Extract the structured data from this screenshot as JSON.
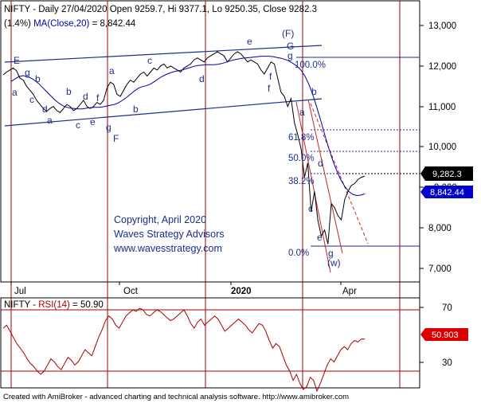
{
  "header": {
    "line1": "NIFTY - Daily 27/04/2020 Open 9259.7, Hi 9377.1, Lo 9250.35, Close 9282.3",
    "line2_prefix": "(1.4%) ",
    "line2_ma": "MA(Close,20)",
    "line2_value": " = 8,842.44"
  },
  "price_axis": {
    "ticks": [
      "13,000",
      "12,000",
      "11,000",
      "10,000",
      "9,000",
      "8,000",
      "7,000"
    ],
    "close_badge": "9,282.3",
    "ma_badge": "8,842.44"
  },
  "x_axis": {
    "ticks": [
      "Jul",
      "Oct",
      "2020",
      "Apr"
    ]
  },
  "copyright": {
    "line1": "Copyright, April 2020",
    "line2": "Waves Strategy Advisors",
    "line3": "www.wavesstrategy.com"
  },
  "fib_labels": [
    "100.0%",
    "61.8%",
    "50.0%",
    "38.2%",
    "0.0%"
  ],
  "wave_labels": {
    "E": "E",
    "a": "a",
    "b": "b",
    "c": "c",
    "d": "d",
    "e": "e",
    "f": "f",
    "g": "g",
    "F_top": "(F)",
    "G": "G",
    "F": "F",
    "W": "(w)"
  },
  "rsi": {
    "label_prefix": "NIFTY - ",
    "label_rsi": "RSI(14)",
    "label_value": " = 50.90",
    "ticks": [
      "70",
      "30"
    ],
    "badge": "50.903"
  },
  "footer": "Created with AmiBroker - advanced charting and technical analysis software. http://www.amibroker.com",
  "colors": {
    "price": "#000000",
    "ma": "#0000aa",
    "rsi": "#aa0000",
    "channel": "#1c2e8c",
    "vertical": "#990000",
    "badge_close": "#000000",
    "badge_ma": "#0000cc",
    "badge_rsi": "#dd0000"
  },
  "chart_data": [
    {
      "type": "line",
      "title": "NIFTY - Daily 27/04/2020 Open 9259.7, Hi 9377.1, Lo 9250.35, Close 9282.3",
      "ylim": [
        6500,
        13300
      ],
      "x_tick_labels": [
        "Jul",
        "Oct",
        "2020",
        "Apr"
      ],
      "series": [
        {
          "name": "NIFTY",
          "values": [
            11780,
            11850,
            11900,
            11950,
            11880,
            11700,
            11650,
            11500,
            11400,
            11300,
            11150,
            11050,
            10950,
            10880,
            10950,
            11000,
            10900,
            10850,
            10950,
            11050,
            11000,
            10900,
            10950,
            11050,
            11150,
            11000,
            10950,
            11000,
            11100,
            11050,
            11150,
            11450,
            11600,
            11550,
            11300,
            11250,
            11400,
            11550,
            11650,
            11600,
            11700,
            11800,
            11850,
            11750,
            11850,
            11950,
            11900,
            12000,
            12050,
            11950,
            12000,
            11950,
            11900,
            11850,
            11950,
            12000,
            12050,
            12150,
            12200,
            12150,
            12100,
            12200,
            12250,
            12300,
            12350,
            12300,
            12250,
            12100,
            12200,
            12300,
            12350,
            12300,
            12200,
            12100,
            12150,
            12100,
            12050,
            11900,
            11800,
            11950,
            12100,
            12050,
            11700,
            11350,
            11250,
            11000,
            11200,
            10600,
            10300,
            9950,
            9250,
            9600,
            8400,
            8900,
            8200,
            7800,
            7950,
            7600,
            8600,
            8500,
            8300,
            8200,
            8700,
            8900,
            9050,
            9100,
            9200,
            9250,
            9280
          ]
        },
        {
          "name": "MA(Close,20)",
          "values": [
            11620,
            11680,
            11740,
            11760,
            11740,
            11700,
            11640,
            11560,
            11460,
            11360,
            11260,
            11160,
            11080,
            11020,
            10980,
            10960,
            10950,
            10940,
            10940,
            10960,
            10970,
            10980,
            10980,
            10990,
            11010,
            11030,
            11050,
            11090,
            11150,
            11220,
            11300,
            11380,
            11450,
            11490,
            11510,
            11550,
            11610,
            11680,
            11740,
            11790,
            11830,
            11860,
            11880,
            11900,
            11930,
            11960,
            11990,
            12010,
            12020,
            12030,
            12030,
            12030,
            12040,
            12060,
            12090,
            12120,
            12150,
            12170,
            12190,
            12200,
            12210,
            12220,
            12230,
            12240,
            12240,
            12240,
            12230,
            12210,
            12190,
            12160,
            12120,
            12060,
            11990,
            11890,
            11740,
            11530,
            11270,
            10960,
            10630,
            10280,
            9950,
            9650,
            9400,
            9180,
            9020,
            8900,
            8830,
            8800,
            8810,
            8842
          ]
        }
      ]
    },
    {
      "type": "line",
      "title": "NIFTY - RSI(14) = 50.90",
      "ylim": [
        10,
        80
      ],
      "x_tick_labels": [],
      "series": [
        {
          "name": "RSI(14)",
          "values": [
            58,
            60,
            56,
            52,
            48,
            45,
            42,
            38,
            35,
            33,
            30,
            28,
            30,
            34,
            38,
            36,
            33,
            31,
            35,
            39,
            37,
            34,
            36,
            40,
            44,
            42,
            40,
            46,
            52,
            57,
            63,
            66,
            64,
            60,
            58,
            62,
            66,
            68,
            70,
            69,
            71,
            70,
            67,
            66,
            68,
            70,
            69,
            67,
            65,
            63,
            64,
            66,
            68,
            70,
            66,
            61,
            58,
            62,
            64,
            60,
            62,
            64,
            66,
            64,
            60,
            56,
            58,
            60,
            62,
            64,
            62,
            60,
            57,
            55,
            58,
            61,
            60,
            56,
            50,
            45,
            48,
            46,
            40,
            34,
            30,
            24,
            28,
            22,
            18,
            20,
            26,
            24,
            17,
            22,
            28,
            34,
            38,
            36,
            40,
            44,
            46,
            44,
            48,
            50,
            49,
            51,
            50.9
          ]
        }
      ]
    }
  ]
}
